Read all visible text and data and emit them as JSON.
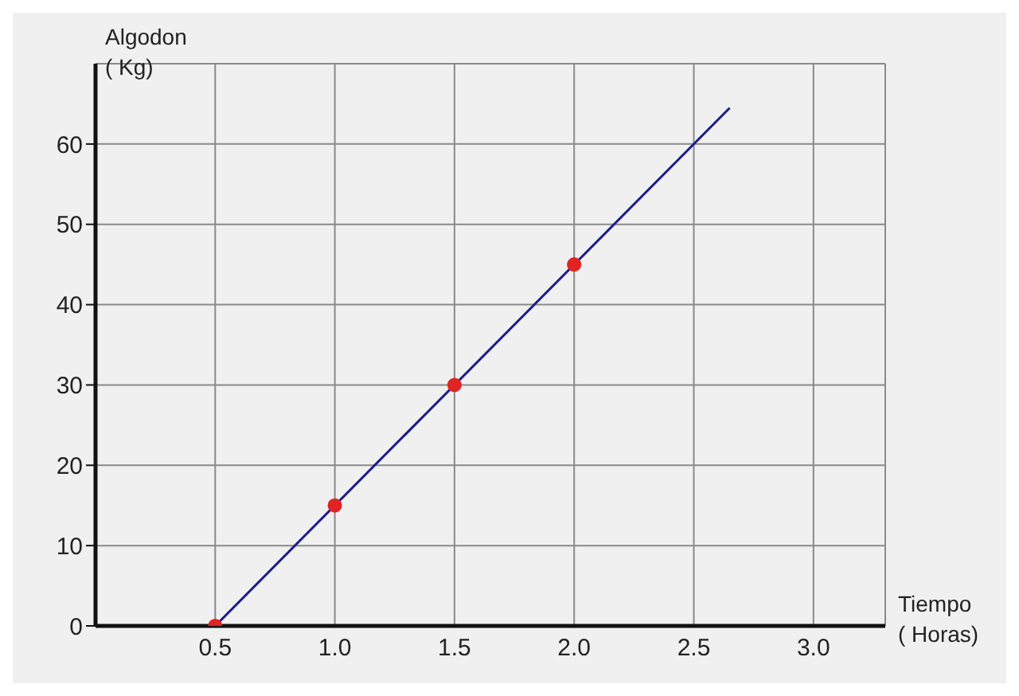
{
  "chart_data": {
    "type": "line",
    "xlabel": "Tiempo\n( Horas)",
    "ylabel": "Algodon\n( Kg)",
    "xlim": [
      0,
      3.3
    ],
    "ylim": [
      0,
      70
    ],
    "xticks": [
      0.5,
      {
        "value": 1,
        "label": "1.0"
      },
      1.5,
      {
        "value": 2,
        "label": "2.0"
      },
      2.5,
      {
        "value": 3,
        "label": "3.0"
      }
    ],
    "yticks": [
      0,
      10,
      20,
      30,
      40,
      50,
      60
    ],
    "grid": true,
    "series": [
      {
        "color": "#1c1c8a",
        "x": [
          0.5,
          2.65
        ],
        "values": [
          0,
          64.5
        ],
        "marker": "none"
      },
      {
        "type": "scatter",
        "color": "#e02424",
        "x": [
          0.5,
          1,
          1.5,
          2
        ],
        "values": [
          0,
          15,
          30,
          45
        ],
        "marker": "circle"
      }
    ]
  }
}
